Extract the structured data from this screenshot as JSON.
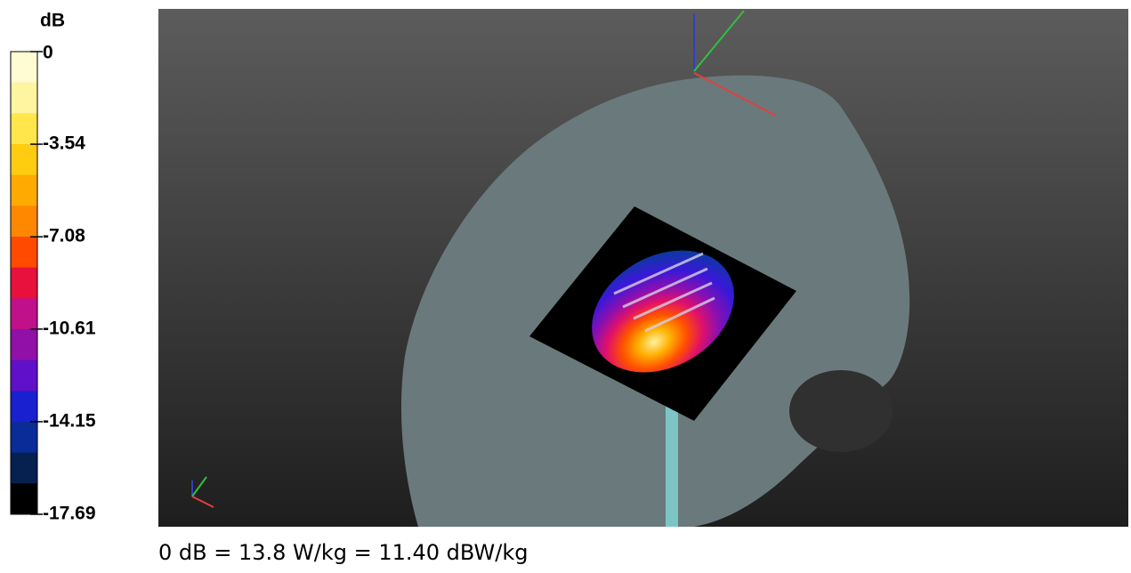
{
  "colorbar": {
    "unit": "dB",
    "lim": [
      -17.69,
      0
    ],
    "ticks": [
      0,
      -3.54,
      -7.08,
      -10.61,
      -14.15,
      -17.69
    ],
    "colors": [
      "#fffbd2",
      "#fff4a0",
      "#ffe64a",
      "#ffcc10",
      "#ffaa00",
      "#ff8800",
      "#ff4a00",
      "#e8103c",
      "#c0108a",
      "#9010a8",
      "#6010c8",
      "#1820d0",
      "#0a2c98",
      "#062050",
      "#000000"
    ]
  },
  "caption": "0 dB = 13.8 W/kg = 11.40 dBW/kg"
}
